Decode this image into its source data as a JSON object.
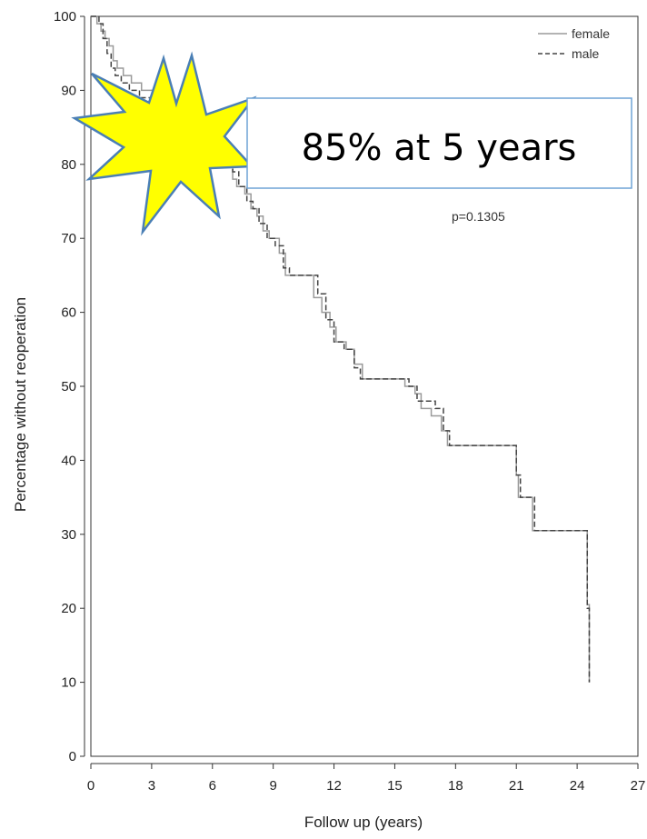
{
  "chart_data": {
    "type": "line",
    "xlabel": "Follow up (years)",
    "ylabel": "Percentage without reoperation",
    "xlim": [
      0,
      27
    ],
    "ylim": [
      0,
      100
    ],
    "xticks": [
      0,
      3,
      6,
      9,
      12,
      15,
      18,
      21,
      24,
      27
    ],
    "yticks": [
      0,
      10,
      20,
      30,
      40,
      50,
      60,
      70,
      80,
      90,
      100
    ],
    "legend_position": "top-right",
    "annotations": {
      "p_value": "p=0.1305",
      "callout": "85% at 5 years"
    },
    "series": [
      {
        "name": "female",
        "style": "solid",
        "color": "#9a9a9a",
        "points": [
          [
            0,
            100
          ],
          [
            0.3,
            99
          ],
          [
            0.5,
            98
          ],
          [
            0.7,
            97
          ],
          [
            0.9,
            96
          ],
          [
            1.1,
            94
          ],
          [
            1.3,
            93
          ],
          [
            1.6,
            92
          ],
          [
            2.0,
            91
          ],
          [
            2.5,
            90
          ],
          [
            3.2,
            89
          ],
          [
            3.8,
            88
          ],
          [
            4.3,
            87
          ],
          [
            4.8,
            86
          ],
          [
            5.2,
            85
          ],
          [
            5.6,
            84
          ],
          [
            6.0,
            83
          ],
          [
            6.4,
            82
          ],
          [
            6.8,
            80
          ],
          [
            7.0,
            78
          ],
          [
            7.2,
            77
          ],
          [
            7.6,
            76
          ],
          [
            7.9,
            74
          ],
          [
            8.2,
            73
          ],
          [
            8.5,
            71
          ],
          [
            8.8,
            70
          ],
          [
            9.3,
            68
          ],
          [
            9.6,
            65
          ],
          [
            10.0,
            65
          ],
          [
            11.0,
            62
          ],
          [
            11.4,
            60
          ],
          [
            11.8,
            58
          ],
          [
            12.1,
            56
          ],
          [
            12.6,
            55
          ],
          [
            13.0,
            53
          ],
          [
            13.4,
            51
          ],
          [
            15.5,
            50
          ],
          [
            16.0,
            49
          ],
          [
            16.3,
            47
          ],
          [
            16.8,
            46
          ],
          [
            17.3,
            44
          ],
          [
            17.6,
            42
          ],
          [
            20.9,
            42
          ],
          [
            21.0,
            38
          ],
          [
            21.1,
            35
          ],
          [
            21.7,
            35
          ],
          [
            21.8,
            30.5
          ],
          [
            24.4,
            30.5
          ],
          [
            24.5,
            20.5
          ],
          [
            24.6,
            10
          ]
        ]
      },
      {
        "name": "male",
        "style": "dashed",
        "color": "#444444",
        "points": [
          [
            0,
            100
          ],
          [
            0.4,
            99
          ],
          [
            0.6,
            97
          ],
          [
            0.8,
            95
          ],
          [
            1.0,
            93
          ],
          [
            1.2,
            92
          ],
          [
            1.5,
            91
          ],
          [
            1.9,
            90
          ],
          [
            2.4,
            89
          ],
          [
            3.0,
            88
          ],
          [
            3.6,
            87
          ],
          [
            4.0,
            86
          ],
          [
            4.6,
            85
          ],
          [
            5.1,
            84
          ],
          [
            5.5,
            83
          ],
          [
            5.9,
            82
          ],
          [
            6.3,
            81
          ],
          [
            6.7,
            80
          ],
          [
            7.0,
            79
          ],
          [
            7.3,
            77
          ],
          [
            7.7,
            75
          ],
          [
            8.0,
            74
          ],
          [
            8.3,
            72
          ],
          [
            8.7,
            70
          ],
          [
            9.1,
            69
          ],
          [
            9.5,
            66
          ],
          [
            9.8,
            65
          ],
          [
            11.2,
            62.5
          ],
          [
            11.6,
            59
          ],
          [
            12.0,
            56
          ],
          [
            12.5,
            55
          ],
          [
            13.0,
            52.5
          ],
          [
            13.3,
            51
          ],
          [
            15.7,
            50
          ],
          [
            16.1,
            48
          ],
          [
            17.0,
            47
          ],
          [
            17.4,
            44
          ],
          [
            17.7,
            42
          ],
          [
            20.9,
            42
          ],
          [
            21.0,
            38
          ],
          [
            21.2,
            35
          ],
          [
            21.7,
            35
          ],
          [
            21.9,
            30.5
          ],
          [
            24.4,
            30.5
          ],
          [
            24.5,
            20
          ],
          [
            24.6,
            10
          ]
        ]
      }
    ]
  }
}
